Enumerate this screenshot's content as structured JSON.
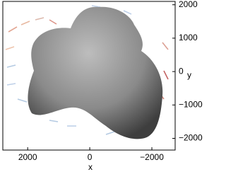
{
  "chart_data": {
    "type": "image",
    "xlabel": "x",
    "ylabel": "y",
    "xlim": [
      2800,
      -2750
    ],
    "ylim": [
      -2350,
      2100
    ],
    "xticks": [
      2000,
      0,
      {
        "value": -2000,
        "label": "−2000"
      }
    ],
    "yticks": [
      {
        "value": -2000,
        "label": "−2000"
      },
      {
        "value": -1000,
        "label": "−1000"
      },
      0,
      1000,
      2000
    ]
  }
}
